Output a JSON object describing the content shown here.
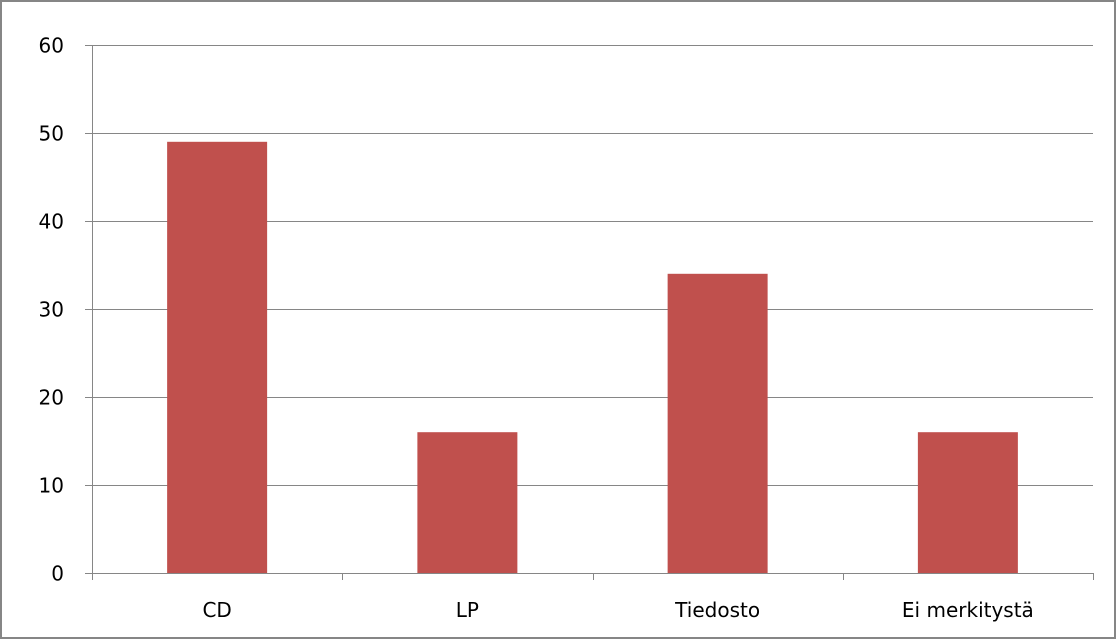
{
  "chart_data": {
    "type": "bar",
    "categories": [
      "CD",
      "LP",
      "Tiedosto",
      "Ei merkitystä"
    ],
    "values": [
      49,
      16,
      34,
      16
    ],
    "ylim": [
      0,
      60
    ],
    "yticks": [
      0,
      10,
      20,
      30,
      40,
      50,
      60
    ],
    "grid": true,
    "legend": "none",
    "title": "",
    "xlabel": "",
    "ylabel": "",
    "colors": {
      "bar": "#C0504D",
      "grid": "#868686",
      "axis": "#868686",
      "frame": "#868686"
    }
  }
}
